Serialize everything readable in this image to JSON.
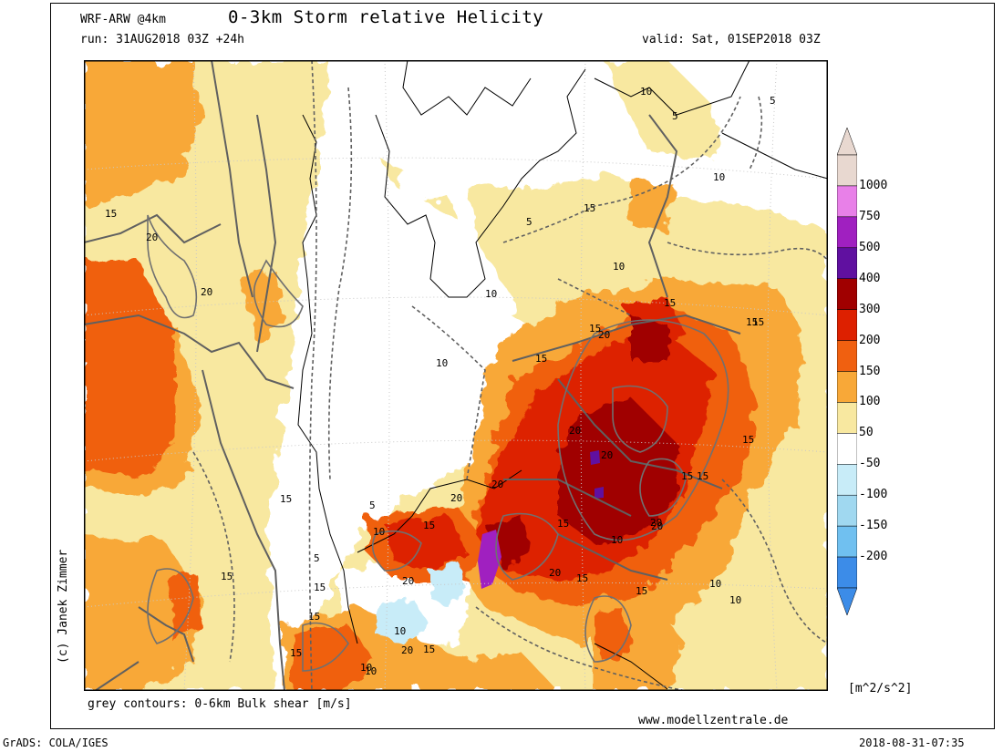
{
  "header": {
    "model": "WRF-ARW @4km",
    "title": "0-3km Storm relative Helicity",
    "run": "run: 31AUG2018 03Z +24h",
    "valid": "valid: Sat, 01SEP2018 03Z"
  },
  "footer": {
    "contours_note": "grey contours: 0-6km Bulk shear [m/s]",
    "website": "www.modellzentrale.de",
    "software": "GrADS: COLA/IGES",
    "timestamp": "2018-08-31-07:35",
    "units": "[m^2/s^2]"
  },
  "copyright": "(c) Janek Zimmer",
  "colorbar": {
    "levels": [
      {
        "label": "1000",
        "color": "#e8d8d0"
      },
      {
        "label": "750",
        "color": "#e880e8"
      },
      {
        "label": "500",
        "color": "#a020c0"
      },
      {
        "label": "400",
        "color": "#6010a0"
      },
      {
        "label": "300",
        "color": "#a00000"
      },
      {
        "label": "200",
        "color": "#dd2000"
      },
      {
        "label": "150",
        "color": "#f06010"
      },
      {
        "label": "100",
        "color": "#f8a838"
      },
      {
        "label": "50",
        "color": "#f8e8a0"
      },
      {
        "label": "-50",
        "color": "#ffffff"
      },
      {
        "label": "-100",
        "color": "#c8ecf8"
      },
      {
        "label": "-150",
        "color": "#a0d8f0"
      },
      {
        "label": "-200",
        "color": "#70c0f0"
      },
      {
        "label": "",
        "color": "#3c8ce8"
      }
    ],
    "top_color": "#e8d8d0",
    "bottom_color": "#3c8ce8"
  },
  "contour_labels": [
    {
      "text": "10"
    },
    {
      "text": "5"
    },
    {
      "text": "10"
    },
    {
      "text": "5"
    },
    {
      "text": "15"
    },
    {
      "text": "20"
    },
    {
      "text": "20"
    },
    {
      "text": "15"
    },
    {
      "text": "5"
    },
    {
      "text": "10"
    },
    {
      "text": "10"
    },
    {
      "text": "15"
    },
    {
      "text": "15"
    },
    {
      "text": "20"
    },
    {
      "text": "15"
    },
    {
      "text": "15"
    },
    {
      "text": "20"
    },
    {
      "text": "20"
    },
    {
      "text": "15"
    },
    {
      "text": "20"
    },
    {
      "text": "15"
    },
    {
      "text": "10"
    },
    {
      "text": "20"
    },
    {
      "text": "15"
    },
    {
      "text": "15"
    },
    {
      "text": "15"
    },
    {
      "text": "10"
    },
    {
      "text": "20"
    },
    {
      "text": "5"
    },
    {
      "text": "10"
    },
    {
      "text": "20"
    },
    {
      "text": "15"
    },
    {
      "text": "15"
    },
    {
      "text": "5"
    },
    {
      "text": "20"
    },
    {
      "text": "15"
    },
    {
      "text": "15"
    },
    {
      "text": "10"
    },
    {
      "text": "20"
    },
    {
      "text": "15"
    },
    {
      "text": "20"
    },
    {
      "text": "15"
    },
    {
      "text": "10"
    },
    {
      "text": "10"
    },
    {
      "text": "15"
    },
    {
      "text": "15"
    },
    {
      "text": "10"
    },
    {
      "text": "10"
    },
    {
      "text": "15"
    }
  ]
}
